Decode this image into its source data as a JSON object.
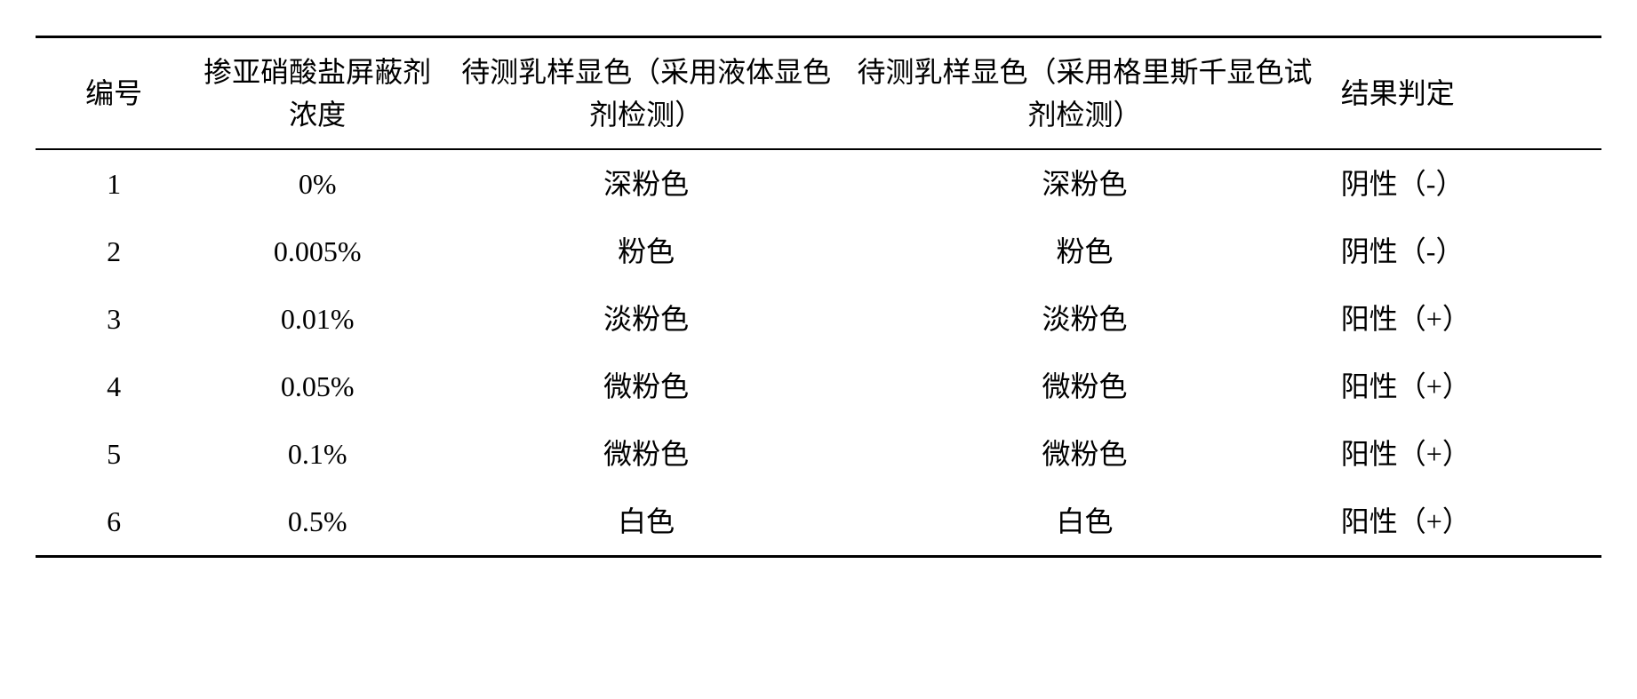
{
  "table": {
    "headers": {
      "id": "编号",
      "conc": "掺亚硝酸盐屏蔽剂浓度",
      "liq": "待测乳样显色（采用液体显色剂检测）",
      "gries": "待测乳样显色（采用格里斯千显色试剂检测）",
      "result": "结果判定"
    },
    "rows": [
      {
        "id": "1",
        "conc": "0%",
        "liq": "深粉色",
        "gries": "深粉色",
        "result": "阴性（-）"
      },
      {
        "id": "2",
        "conc": "0.005%",
        "liq": "粉色",
        "gries": "粉色",
        "result": "阴性（-）"
      },
      {
        "id": "3",
        "conc": "0.01%",
        "liq": "淡粉色",
        "gries": "淡粉色",
        "result": "阳性（+）"
      },
      {
        "id": "4",
        "conc": "0.05%",
        "liq": "微粉色",
        "gries": "微粉色",
        "result": "阳性（+）"
      },
      {
        "id": "5",
        "conc": "0.1%",
        "liq": "微粉色",
        "gries": "微粉色",
        "result": "阳性（+）"
      },
      {
        "id": "6",
        "conc": "0.5%",
        "liq": "白色",
        "gries": "白色",
        "result": "阳性（+）"
      }
    ],
    "colors": {
      "text": "#000000",
      "background": "#ffffff",
      "rule": "#000000"
    },
    "typography": {
      "font_family": "SimSun",
      "font_size_pt": 24
    }
  }
}
